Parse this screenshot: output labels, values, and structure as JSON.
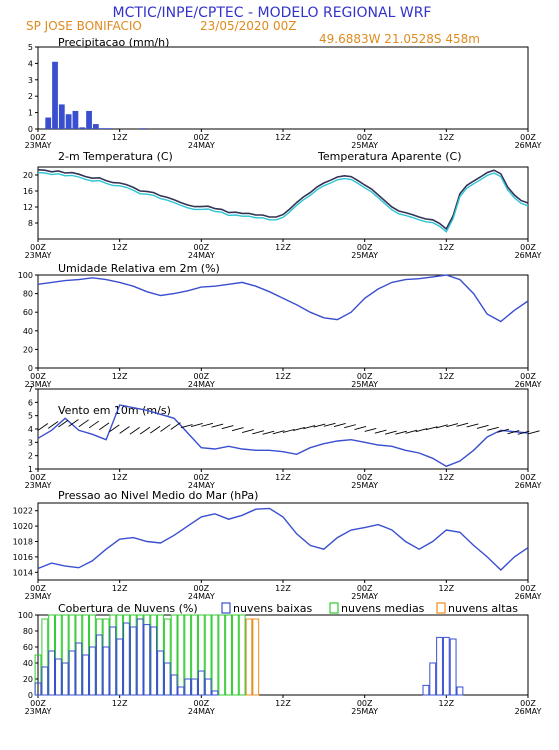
{
  "header": {
    "title": "MCTIC/INPE/CPTEC - MODELO REGIONAL WRF",
    "location": "SP JOSE BONIFACIO",
    "run_date": "23/05/2020 00Z",
    "coords": "49.6883W 21.0528S 458m"
  },
  "colors": {
    "title": "#3333cc",
    "header_orange": "#e08a1e",
    "series_blue": "#3a4fd0",
    "apparent_cyan": "#2ec4d6",
    "cloud_low": "#3a4fd0",
    "cloud_mid": "#33cc33",
    "cloud_high": "#f08c1e"
  },
  "time_axis": {
    "ticks": [
      {
        "t": 0,
        "hour": "00Z",
        "day": "23MAY"
      },
      {
        "t": 12,
        "hour": "12Z",
        "day": ""
      },
      {
        "t": 24,
        "hour": "00Z",
        "day": "24MAY"
      },
      {
        "t": 36,
        "hour": "12Z",
        "day": ""
      },
      {
        "t": 48,
        "hour": "00Z",
        "day": "25MAY"
      },
      {
        "t": 60,
        "hour": "12Z",
        "day": ""
      },
      {
        "t": 72,
        "hour": "00Z",
        "day": "26MAY"
      }
    ],
    "range_hours": [
      0,
      72
    ]
  },
  "chart_data": [
    {
      "id": "precip",
      "type": "bar",
      "title": "Precipitacao (mm/h)",
      "ylim": [
        0,
        5
      ],
      "yticks": [
        0,
        1,
        2,
        3,
        4,
        5
      ],
      "x": [
        1.5,
        2.5,
        3.5,
        4.5,
        5.5,
        6.5,
        7.5,
        8.5,
        9.5,
        10.5,
        15.5
      ],
      "values": [
        0.7,
        4.1,
        1.5,
        0.9,
        1.1,
        0.1,
        1.1,
        0.3,
        0.05,
        0.05,
        0.05
      ]
    },
    {
      "id": "temp",
      "type": "line",
      "title": "2-m Temperatura (C)",
      "legend_secondary": "Temperatura Aparente (C)",
      "ylim": [
        4,
        22
      ],
      "yticks": [
        8,
        12,
        16,
        20
      ],
      "x": [
        0,
        1,
        2,
        3,
        4,
        5,
        6,
        7,
        8,
        9,
        10,
        11,
        12,
        13,
        14,
        15,
        16,
        17,
        18,
        19,
        20,
        21,
        22,
        23,
        24,
        25,
        26,
        27,
        28,
        29,
        30,
        31,
        32,
        33,
        34,
        35,
        36,
        37,
        38,
        39,
        40,
        41,
        42,
        43,
        44,
        45,
        46,
        47,
        48,
        49,
        50,
        51,
        52,
        53,
        54,
        55,
        56,
        57,
        58,
        59,
        60,
        61,
        62,
        63,
        64,
        65,
        66,
        67,
        68,
        69,
        70,
        71,
        72
      ],
      "series": [
        {
          "name": "",
          "values": [
            21.3,
            21.2,
            20.8,
            21.0,
            20.5,
            20.6,
            20.2,
            19.6,
            19.2,
            19.3,
            18.6,
            18.1,
            18.0,
            17.6,
            16.9,
            16.0,
            15.9,
            15.6,
            14.8,
            14.4,
            13.8,
            13.1,
            12.5,
            12.1,
            12.1,
            12.2,
            11.6,
            11.4,
            10.6,
            10.7,
            10.4,
            10.4,
            10.0,
            10.0,
            9.5,
            9.5,
            10.1,
            11.5,
            13.1,
            14.5,
            15.6,
            17.0,
            18.0,
            18.7,
            19.5,
            19.8,
            19.6,
            18.6,
            17.5,
            16.5,
            15.0,
            13.5,
            12.0,
            11.0,
            10.6,
            10.1,
            9.5,
            9.0,
            8.8,
            7.9,
            6.5,
            9.8,
            15.3,
            17.4,
            18.5,
            19.5,
            20.6,
            21.2,
            20.3,
            17.0,
            15.0,
            13.6,
            13.0
          ]
        },
        {
          "name": "Temperatura Aparente (C)",
          "values": [
            20.6,
            20.5,
            20.1,
            20.3,
            19.8,
            19.9,
            19.5,
            18.9,
            18.5,
            18.6,
            17.9,
            17.4,
            17.3,
            16.9,
            16.2,
            15.3,
            15.2,
            14.9,
            14.1,
            13.7,
            13.1,
            12.4,
            11.8,
            11.4,
            11.4,
            11.5,
            10.9,
            10.7,
            9.9,
            10.0,
            9.7,
            9.7,
            9.3,
            9.3,
            8.8,
            8.8,
            9.4,
            10.8,
            12.4,
            13.8,
            14.9,
            16.3,
            17.3,
            18.0,
            18.8,
            19.1,
            18.9,
            17.9,
            16.8,
            15.8,
            14.3,
            12.8,
            11.3,
            10.3,
            9.9,
            9.4,
            8.8,
            8.3,
            8.1,
            7.2,
            5.8,
            9.1,
            14.6,
            16.7,
            17.8,
            18.8,
            19.9,
            20.5,
            19.6,
            16.3,
            14.3,
            12.9,
            12.3
          ]
        }
      ]
    },
    {
      "id": "rh",
      "type": "line",
      "title": "Umidade Relativa em 2m (%)",
      "ylim": [
        0,
        100
      ],
      "yticks": [
        0,
        20,
        40,
        60,
        80,
        100
      ],
      "x": [
        0,
        2,
        4,
        6,
        8,
        10,
        12,
        14,
        16,
        18,
        20,
        22,
        24,
        26,
        28,
        30,
        32,
        34,
        36,
        38,
        40,
        42,
        44,
        46,
        48,
        50,
        52,
        54,
        56,
        58,
        60,
        62,
        64,
        66,
        68,
        70,
        72
      ],
      "values": [
        90,
        92,
        94,
        95,
        97,
        95,
        92,
        88,
        82,
        78,
        80,
        83,
        87,
        88,
        90,
        92,
        88,
        82,
        75,
        68,
        60,
        54,
        52,
        60,
        75,
        85,
        92,
        95,
        96,
        98,
        100,
        95,
        80,
        58,
        50,
        62,
        72
      ]
    },
    {
      "id": "wind",
      "type": "line",
      "title": "Vento em 10m (m/s)",
      "ylim": [
        1,
        7
      ],
      "yticks": [
        1,
        2,
        3,
        4,
        5,
        6,
        7
      ],
      "x": [
        0,
        2,
        4,
        6,
        8,
        10,
        12,
        14,
        16,
        18,
        20,
        22,
        24,
        26,
        28,
        30,
        32,
        34,
        36,
        38,
        40,
        42,
        44,
        46,
        48,
        50,
        52,
        54,
        56,
        58,
        60,
        62,
        64,
        66,
        68,
        70,
        72
      ],
      "values": [
        3.3,
        3.9,
        4.8,
        3.9,
        3.6,
        3.2,
        5.8,
        5.6,
        5.4,
        5.1,
        4.8,
        3.7,
        2.6,
        2.5,
        2.7,
        2.5,
        2.4,
        2.4,
        2.3,
        2.1,
        2.6,
        2.9,
        3.1,
        3.2,
        3.0,
        2.8,
        2.7,
        2.4,
        2.2,
        1.8,
        1.2,
        1.6,
        2.4,
        3.4,
        3.9,
        3.8,
        3.7
      ]
    },
    {
      "id": "pressure",
      "type": "line",
      "title": "Pressao ao Nivel Medio do Mar (hPa)",
      "ylim": [
        1013,
        1023
      ],
      "yticks": [
        1014,
        1016,
        1018,
        1020,
        1022
      ],
      "x": [
        0,
        2,
        4,
        6,
        8,
        10,
        12,
        14,
        16,
        18,
        20,
        22,
        24,
        26,
        28,
        30,
        32,
        34,
        36,
        38,
        40,
        42,
        44,
        46,
        48,
        50,
        52,
        54,
        56,
        58,
        60,
        62,
        64,
        66,
        68,
        70,
        72
      ],
      "values": [
        1014.5,
        1015.2,
        1014.8,
        1014.6,
        1015.5,
        1017.0,
        1018.3,
        1018.5,
        1018.0,
        1017.8,
        1018.8,
        1020.0,
        1021.2,
        1021.6,
        1020.9,
        1021.4,
        1022.2,
        1022.3,
        1021.2,
        1019.0,
        1017.5,
        1017.0,
        1018.5,
        1019.5,
        1019.8,
        1020.2,
        1019.5,
        1018.0,
        1017.0,
        1018.0,
        1019.5,
        1019.2,
        1017.5,
        1016.0,
        1014.3,
        1016.0,
        1017.2
      ]
    },
    {
      "id": "clouds",
      "type": "bar",
      "title": "Cobertura de Nuvens (%)",
      "ylim": [
        0,
        100
      ],
      "yticks": [
        0,
        20,
        40,
        60,
        80,
        100
      ],
      "legend": [
        "nuvens baixas",
        "nuvens medias",
        "nuvens altas"
      ],
      "x": [
        0,
        1,
        2,
        3,
        4,
        5,
        6,
        7,
        8,
        9,
        10,
        11,
        12,
        13,
        14,
        15,
        16,
        17,
        18,
        19,
        20,
        21,
        22,
        23,
        24,
        25,
        26,
        27,
        28,
        29,
        30,
        31,
        32,
        33,
        34,
        35,
        36,
        37,
        38,
        39,
        40,
        41,
        42,
        43,
        44,
        45,
        46,
        47,
        48,
        49,
        50,
        51,
        52,
        53,
        54,
        55,
        56,
        57,
        58,
        59,
        60,
        61,
        62,
        63,
        64,
        65,
        66,
        67,
        68,
        69,
        70,
        71,
        72
      ],
      "series": [
        {
          "name": "nuvens baixas",
          "values": [
            15,
            35,
            55,
            45,
            40,
            55,
            65,
            50,
            60,
            75,
            60,
            85,
            70,
            90,
            85,
            95,
            88,
            85,
            55,
            40,
            25,
            10,
            20,
            20,
            30,
            20,
            5,
            0,
            0,
            0,
            0,
            0,
            0,
            0,
            0,
            0,
            0,
            0,
            0,
            0,
            0,
            0,
            0,
            0,
            0,
            0,
            0,
            0,
            0,
            0,
            0,
            0,
            0,
            0,
            0,
            0,
            0,
            12,
            40,
            72,
            72,
            70,
            10,
            0,
            0,
            0,
            0,
            0,
            0,
            0,
            0,
            0,
            0
          ]
        },
        {
          "name": "nuvens medias",
          "values": [
            50,
            95,
            100,
            100,
            100,
            100,
            100,
            100,
            100,
            95,
            95,
            100,
            100,
            100,
            100,
            100,
            100,
            100,
            100,
            95,
            100,
            100,
            100,
            100,
            100,
            100,
            100,
            100,
            100,
            100,
            100,
            95,
            0,
            0,
            0,
            0,
            0,
            0,
            0,
            0,
            0,
            0,
            0,
            0,
            0,
            0,
            0,
            0,
            0,
            0,
            0,
            0,
            0,
            0,
            0,
            0,
            0,
            0,
            0,
            0,
            0,
            0,
            0,
            0,
            0,
            0,
            0,
            0,
            0,
            0,
            0,
            0,
            0
          ]
        },
        {
          "name": "nuvens altas",
          "values": [
            0,
            0,
            0,
            0,
            0,
            0,
            0,
            0,
            0,
            0,
            0,
            0,
            0,
            0,
            0,
            0,
            0,
            0,
            0,
            0,
            0,
            0,
            0,
            0,
            0,
            0,
            0,
            0,
            0,
            0,
            0,
            95,
            95,
            0,
            0,
            0,
            0,
            0,
            0,
            0,
            0,
            0,
            0,
            0,
            0,
            0,
            0,
            0,
            0,
            0,
            0,
            0,
            0,
            0,
            0,
            0,
            0,
            0,
            0,
            0,
            0,
            0,
            0,
            0,
            0,
            0,
            0,
            0,
            0,
            0,
            0,
            0,
            0
          ]
        }
      ]
    }
  ]
}
